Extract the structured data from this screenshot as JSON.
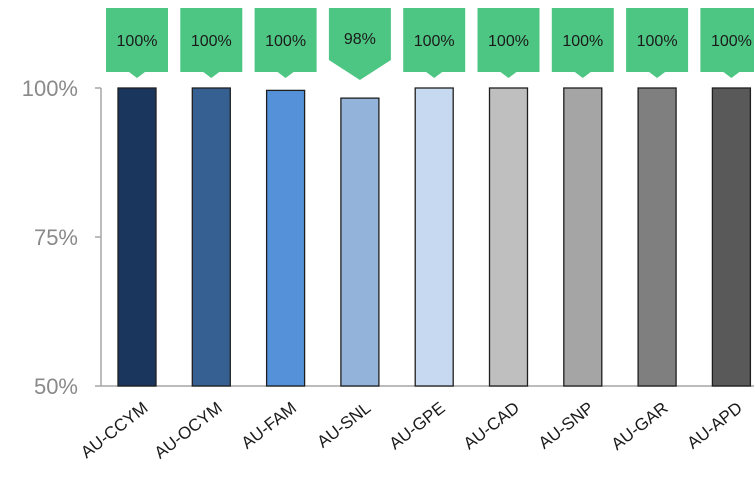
{
  "chart_data": {
    "type": "bar",
    "title": "",
    "xlabel": "",
    "ylabel": "",
    "ylim": [
      50,
      100
    ],
    "yticks": [
      {
        "value": 50,
        "label": "50%"
      },
      {
        "value": 75,
        "label": "75%"
      },
      {
        "value": 100,
        "label": "100%"
      }
    ],
    "grid": false,
    "legend": "none",
    "categories": [
      "AU-CCYM",
      "AU-OCYM",
      "AU-FAM",
      "AU-SNL",
      "AU-GPE",
      "AU-CAD",
      "AU-SNP",
      "AU-GAR",
      "AU-APD"
    ],
    "values": [
      100,
      100,
      99.6,
      98.3,
      100,
      100,
      100,
      100,
      100
    ],
    "data_labels": [
      "100%",
      "100%",
      "100%",
      "98%",
      "100%",
      "100%",
      "100%",
      "100%",
      "100%"
    ],
    "bar_colors": [
      "#1b365d",
      "#365f92",
      "#5591d8",
      "#93b3da",
      "#c7d9f0",
      "#bfbfbf",
      "#a5a5a5",
      "#7f7f7f",
      "#595959"
    ],
    "callout_color": "#4ec683",
    "bar_stroke": "#1f1f1f",
    "axis_color": "#a6a6a6"
  }
}
